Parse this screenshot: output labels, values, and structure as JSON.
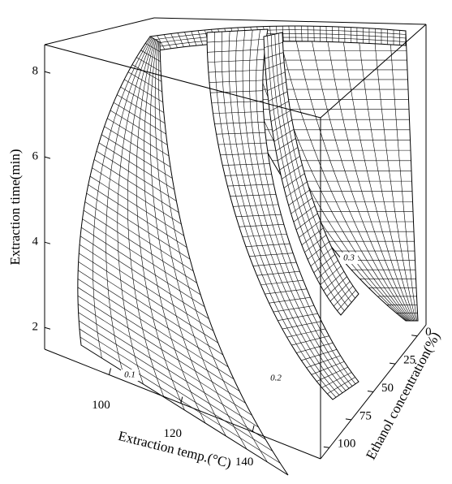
{
  "chart_data": {
    "type": "surface3d",
    "xlabel": "Extraction temp.(°C)",
    "ylabel": "Ethanol concentration(%)",
    "zlabel": "Extraction time(min)",
    "xlim": [
      82,
      159
    ],
    "xticks": [
      100,
      120,
      140
    ],
    "ylim": [
      -10,
      110
    ],
    "yticks": [
      0,
      25,
      50,
      75,
      100
    ],
    "zlim": [
      1.49,
      8.63
    ],
    "zticks": [
      2,
      4,
      6,
      8
    ],
    "surfaces": [
      {
        "level": 0.1
      },
      {
        "level": 0.2
      },
      {
        "level": 0.3
      }
    ]
  }
}
